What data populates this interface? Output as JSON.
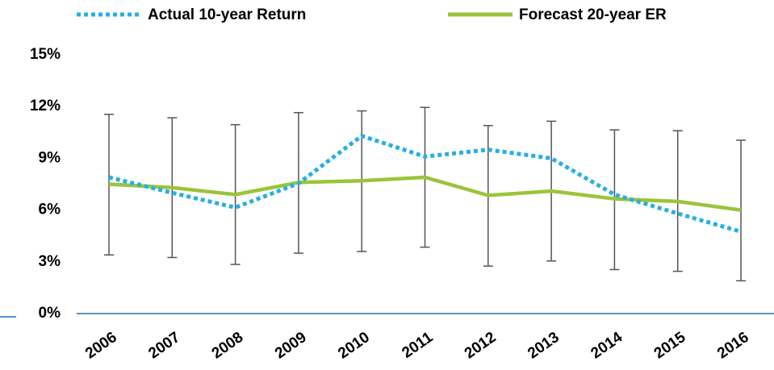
{
  "chart_data": {
    "type": "line",
    "categories": [
      "2006",
      "2007",
      "2008",
      "2009",
      "2010",
      "2011",
      "2012",
      "2013",
      "2014",
      "2015",
      "2016"
    ],
    "series": [
      {
        "name": "Actual 10-year Return",
        "color": "#29aee6",
        "style": "dotted",
        "values": [
          7.9,
          7.0,
          6.15,
          7.55,
          10.3,
          9.1,
          9.5,
          9.0,
          6.9,
          5.8,
          4.75
        ]
      },
      {
        "name": "Forecast 20-year ER",
        "color": "#9bc43b",
        "style": "solid",
        "values": [
          7.5,
          7.3,
          6.9,
          7.6,
          7.7,
          7.9,
          6.85,
          7.1,
          6.65,
          6.5,
          6.0
        ],
        "range_low": [
          3.4,
          3.25,
          2.85,
          3.5,
          3.6,
          3.85,
          2.75,
          3.05,
          2.55,
          2.45,
          1.9
        ],
        "range_high": [
          11.55,
          11.35,
          10.95,
          11.65,
          11.75,
          11.95,
          10.9,
          11.15,
          10.65,
          10.6,
          10.05
        ],
        "range_color": "#555555"
      }
    ],
    "ylim": [
      0,
      15
    ],
    "yticks": [
      {
        "value": 0,
        "label": "0%"
      },
      {
        "value": 3,
        "label": "3%"
      },
      {
        "value": 6,
        "label": "6%"
      },
      {
        "value": 9,
        "label": "9%"
      },
      {
        "value": 12,
        "label": "12%"
      },
      {
        "value": 15,
        "label": "15%"
      }
    ],
    "grid": false,
    "legend": "top",
    "axis_color": "#1f6fb0"
  }
}
